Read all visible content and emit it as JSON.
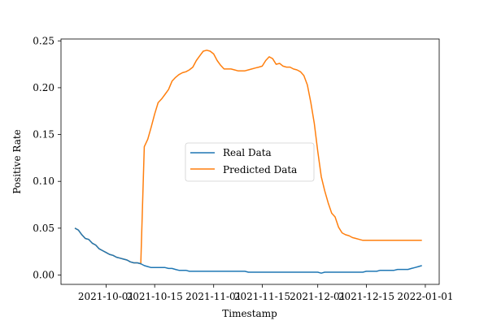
{
  "chart_data": {
    "type": "line",
    "xlabel": "Timestamp",
    "ylabel": "Positive Rate",
    "xlim": [
      "2021-09-18",
      "2022-01-05"
    ],
    "ylim": [
      -0.01,
      0.252
    ],
    "x_ticks": [
      "2021-10-01",
      "2021-10-15",
      "2021-11-01",
      "2021-11-15",
      "2021-12-01",
      "2021-12-15",
      "2022-01-01"
    ],
    "y_ticks": [
      "0.00",
      "0.05",
      "0.10",
      "0.15",
      "0.20",
      "0.25"
    ],
    "legend_position": "center",
    "grid": false,
    "x": [
      "2021-09-22",
      "2021-09-23",
      "2021-09-24",
      "2021-09-25",
      "2021-09-26",
      "2021-09-27",
      "2021-09-28",
      "2021-09-29",
      "2021-09-30",
      "2021-10-01",
      "2021-10-02",
      "2021-10-03",
      "2021-10-04",
      "2021-10-05",
      "2021-10-06",
      "2021-10-07",
      "2021-10-08",
      "2021-10-09",
      "2021-10-10",
      "2021-10-11",
      "2021-10-12",
      "2021-10-13",
      "2021-10-14",
      "2021-10-15",
      "2021-10-16",
      "2021-10-17",
      "2021-10-18",
      "2021-10-19",
      "2021-10-20",
      "2021-10-21",
      "2021-10-22",
      "2021-10-23",
      "2021-10-24",
      "2021-10-25",
      "2021-10-26",
      "2021-10-27",
      "2021-10-28",
      "2021-10-29",
      "2021-10-30",
      "2021-10-31",
      "2021-11-01",
      "2021-11-02",
      "2021-11-03",
      "2021-11-04",
      "2021-11-05",
      "2021-11-06",
      "2021-11-07",
      "2021-11-08",
      "2021-11-09",
      "2021-11-10",
      "2021-11-11",
      "2021-11-12",
      "2021-11-13",
      "2021-11-14",
      "2021-11-15",
      "2021-11-16",
      "2021-11-17",
      "2021-11-18",
      "2021-11-19",
      "2021-11-20",
      "2021-11-21",
      "2021-11-22",
      "2021-11-23",
      "2021-11-24",
      "2021-11-25",
      "2021-11-26",
      "2021-11-27",
      "2021-11-28",
      "2021-11-29",
      "2021-11-30",
      "2021-12-01",
      "2021-12-02",
      "2021-12-03",
      "2021-12-04",
      "2021-12-05",
      "2021-12-06",
      "2021-12-07",
      "2021-12-08",
      "2021-12-09",
      "2021-12-10",
      "2021-12-11",
      "2021-12-12",
      "2021-12-13",
      "2021-12-14",
      "2021-12-15",
      "2021-12-16",
      "2021-12-17",
      "2021-12-18",
      "2021-12-19",
      "2021-12-20",
      "2021-12-21",
      "2021-12-22",
      "2021-12-23",
      "2021-12-24",
      "2021-12-25",
      "2021-12-26",
      "2021-12-27",
      "2021-12-28",
      "2021-12-29",
      "2021-12-30",
      "2021-12-31"
    ],
    "series": [
      {
        "name": "Real Data",
        "color": "#1f77b4",
        "values": [
          0.05,
          0.048,
          0.043,
          0.039,
          0.038,
          0.034,
          0.032,
          0.028,
          0.026,
          0.024,
          0.022,
          0.021,
          0.019,
          0.018,
          0.017,
          0.016,
          0.014,
          0.013,
          0.013,
          0.012,
          0.01,
          0.009,
          0.008,
          0.008,
          0.008,
          0.008,
          0.008,
          0.007,
          0.007,
          0.006,
          0.005,
          0.005,
          0.005,
          0.004,
          0.004,
          0.004,
          0.004,
          0.004,
          0.004,
          0.004,
          0.004,
          0.004,
          0.004,
          0.004,
          0.004,
          0.004,
          0.004,
          0.004,
          0.004,
          0.004,
          0.003,
          0.003,
          0.003,
          0.003,
          0.003,
          0.003,
          0.003,
          0.003,
          0.003,
          0.003,
          0.003,
          0.003,
          0.003,
          0.003,
          0.003,
          0.003,
          0.003,
          0.003,
          0.003,
          0.003,
          0.003,
          0.002,
          0.003,
          0.003,
          0.003,
          0.003,
          0.003,
          0.003,
          0.003,
          0.003,
          0.003,
          0.003,
          0.003,
          0.003,
          0.004,
          0.004,
          0.004,
          0.004,
          0.005,
          0.005,
          0.005,
          0.005,
          0.005,
          0.006,
          0.006,
          0.006,
          0.006,
          0.007,
          0.008,
          0.009,
          0.01
        ]
      },
      {
        "name": "Predicted Data",
        "color": "#ff7f0e",
        "values": [
          0.05,
          0.048,
          0.043,
          0.039,
          0.038,
          0.034,
          0.032,
          0.028,
          0.026,
          0.024,
          0.022,
          0.021,
          0.019,
          0.018,
          0.017,
          0.016,
          0.014,
          0.013,
          0.013,
          0.012,
          0.137,
          0.145,
          0.158,
          0.172,
          0.184,
          0.188,
          0.193,
          0.198,
          0.207,
          0.211,
          0.214,
          0.216,
          0.217,
          0.219,
          0.222,
          0.229,
          0.234,
          0.239,
          0.24,
          0.239,
          0.236,
          0.229,
          0.224,
          0.22,
          0.22,
          0.22,
          0.219,
          0.218,
          0.218,
          0.218,
          0.219,
          0.22,
          0.221,
          0.222,
          0.223,
          0.229,
          0.233,
          0.231,
          0.225,
          0.226,
          0.223,
          0.222,
          0.222,
          0.22,
          0.219,
          0.217,
          0.213,
          0.203,
          0.184,
          0.162,
          0.132,
          0.105,
          0.09,
          0.077,
          0.066,
          0.062,
          0.051,
          0.045,
          0.043,
          0.042,
          0.04,
          0.039,
          0.038,
          0.037,
          0.037,
          0.037,
          0.037,
          0.037,
          0.037,
          0.037,
          0.037,
          0.037,
          0.037,
          0.037,
          0.037,
          0.037,
          0.037,
          0.037,
          0.037,
          0.037,
          0.037
        ]
      }
    ]
  }
}
